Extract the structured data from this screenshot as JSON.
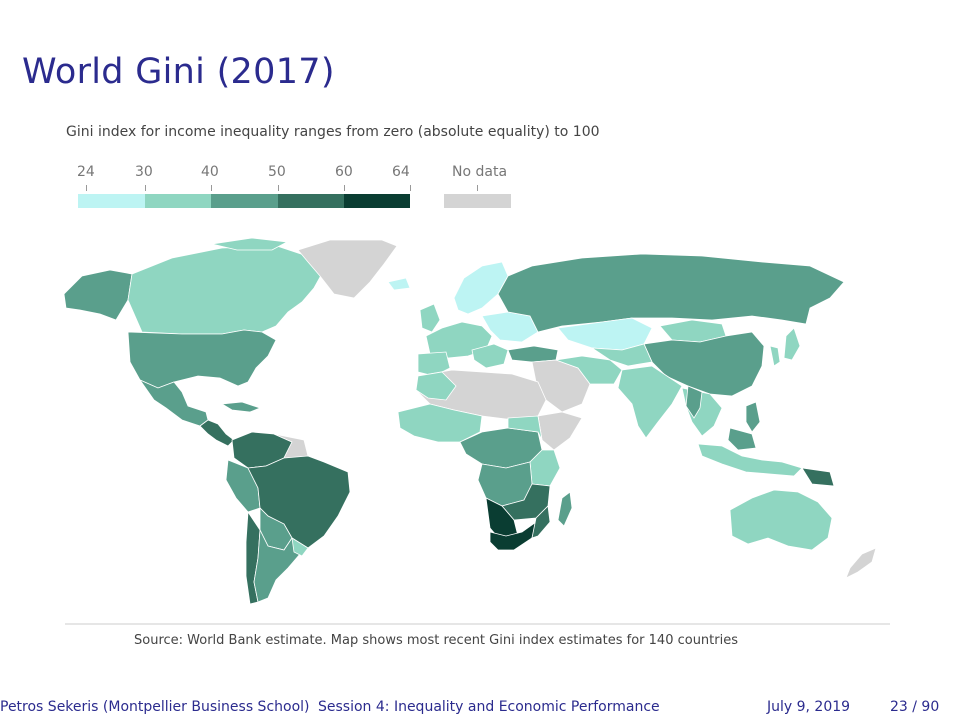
{
  "slide": {
    "title": "World Gini (2017)"
  },
  "map": {
    "subtitle": "Gini index for income inequality ranges from zero (absolute equality) to 100",
    "legend": {
      "breaks": [
        "24",
        "30",
        "40",
        "50",
        "60",
        "64"
      ],
      "no_data_label": "No data",
      "colors": [
        "#bdf4f3",
        "#8fd6c1",
        "#5a9f8c",
        "#35705f",
        "#0a3d32"
      ],
      "no_data_color": "#d4d4d4"
    },
    "source": "Source: World Bank estimate. Map shows most recent Gini index estimates for 140 countries"
  },
  "footer": {
    "author": "Petros Sekeris  (Montpellier Business School)",
    "session": "Session 4: Inequality and Economic Performance",
    "date": "July 9, 2019",
    "page": "23 / 90"
  }
}
